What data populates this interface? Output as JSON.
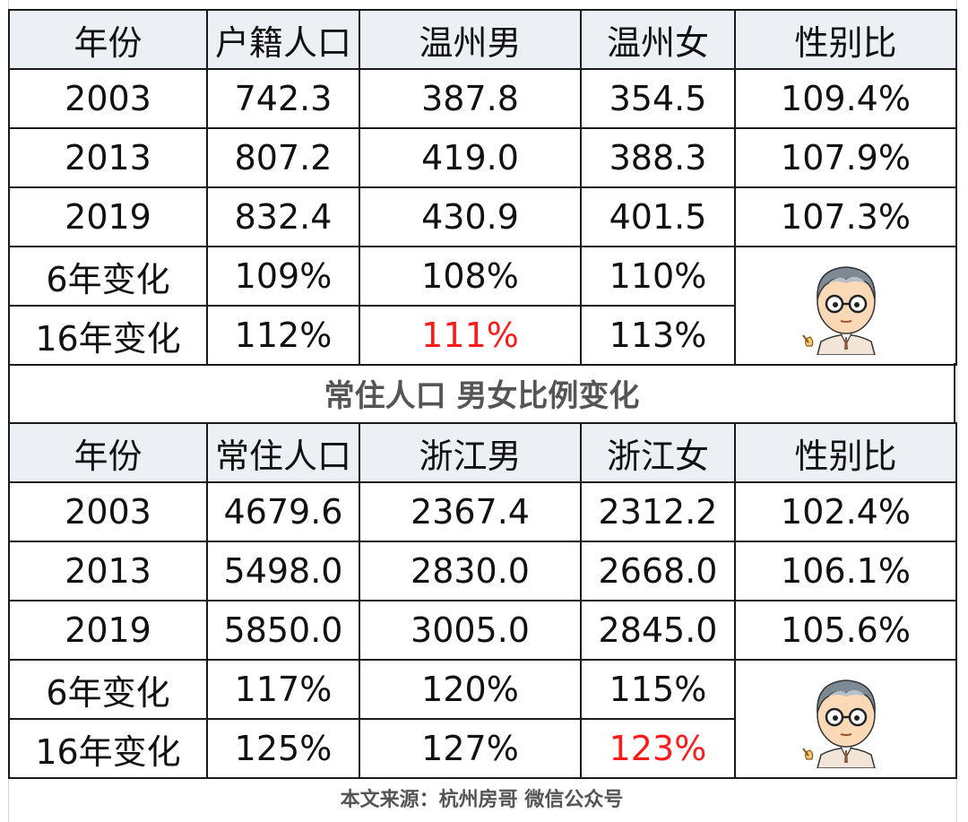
{
  "table1": {
    "headers": [
      "年份",
      "户籍人口",
      "温州男",
      "温州女",
      "性别比"
    ],
    "rows": [
      [
        "2003",
        "742.3",
        "387.8",
        "354.5",
        "109.4%"
      ],
      [
        "2013",
        "807.2",
        "419.0",
        "388.3",
        "107.9%"
      ],
      [
        "2019",
        "832.4",
        "430.9",
        "401.5",
        "107.3%"
      ]
    ],
    "change_rows": [
      [
        "6年变化",
        "109%",
        "108%",
        "110%"
      ],
      [
        "16年变化",
        "112%",
        "111%",
        "113%"
      ]
    ]
  },
  "section_title": "常住人口 男女比例变化",
  "table2": {
    "headers": [
      "年份",
      "常住人口",
      "浙江男",
      "浙江女",
      "性别比"
    ],
    "rows": [
      [
        "2003",
        "4679.6",
        "2367.4",
        "2312.2",
        "102.4%"
      ],
      [
        "2013",
        "5498.0",
        "2830.0",
        "2668.0",
        "106.1%"
      ],
      [
        "2019",
        "5850.0",
        "3005.0",
        "2845.0",
        "105.6%"
      ]
    ],
    "change_rows": [
      [
        "6年变化",
        "117%",
        "120%",
        "115%"
      ],
      [
        "16年变化",
        "125%",
        "127%",
        "123%"
      ]
    ]
  },
  "footer": "本文来源：杭州房哥 微信公众号",
  "colors": {
    "highlight": "#ff1a1a",
    "header_bg": "#eceff3"
  },
  "icons": {
    "avatar": "cartoon-man-avatar-icon"
  }
}
